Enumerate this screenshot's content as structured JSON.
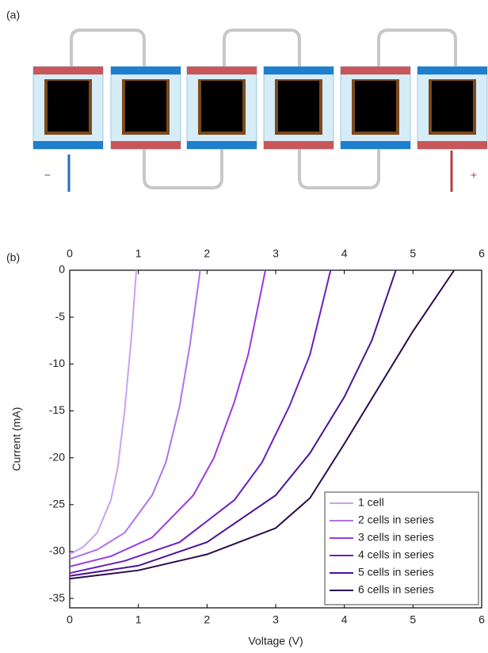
{
  "panel_a": {
    "label": "(a)",
    "minus": "−",
    "plus": "+"
  },
  "chart_data": {
    "type": "line",
    "panel_label": "(b)",
    "x_label": "Voltage (V)",
    "y_label": "Current (mA)",
    "xlim": [
      0,
      6
    ],
    "xticks": [
      0,
      1,
      2,
      3,
      4,
      5,
      6
    ],
    "ylim": [
      -36,
      0
    ],
    "yticks": [
      0,
      -5,
      -10,
      -15,
      -20,
      -25,
      -30,
      -35
    ],
    "grid": false,
    "legend": "lower right",
    "series": [
      {
        "name": "1 cell",
        "color": "#c9a2f2",
        "x": [
          0,
          0.2,
          0.4,
          0.6,
          0.7,
          0.8,
          0.9,
          0.97
        ],
        "values": [
          -30.3,
          -29.5,
          -28,
          -24.5,
          -21,
          -15,
          -7,
          0
        ]
      },
      {
        "name": "2 cells in series",
        "color": "#b072ea",
        "x": [
          0,
          0.4,
          0.8,
          1.2,
          1.4,
          1.6,
          1.75,
          1.9
        ],
        "values": [
          -30.8,
          -29.8,
          -28,
          -24,
          -20.5,
          -14.5,
          -8,
          0
        ]
      },
      {
        "name": "3 cells in series",
        "color": "#9a3ae6",
        "x": [
          0,
          0.6,
          1.2,
          1.8,
          2.1,
          2.4,
          2.6,
          2.85
        ],
        "values": [
          -31.6,
          -30.5,
          -28.5,
          -24,
          -20,
          -14,
          -9,
          0
        ]
      },
      {
        "name": "4 cells in series",
        "color": "#6c1fc0",
        "x": [
          0,
          0.8,
          1.6,
          2.4,
          2.8,
          3.2,
          3.5,
          3.8
        ],
        "values": [
          -32.3,
          -31,
          -29,
          -24.5,
          -20.5,
          -14.5,
          -9,
          0
        ]
      },
      {
        "name": "5 cells in series",
        "color": "#4c1294",
        "x": [
          0,
          1,
          2,
          3,
          3.5,
          4,
          4.4,
          4.75
        ],
        "values": [
          -32.6,
          -31.5,
          -29,
          -24,
          -19.5,
          -13.5,
          -7.5,
          0
        ]
      },
      {
        "name": "6 cells in series",
        "color": "#2a0b4e",
        "x": [
          0,
          1,
          2,
          3,
          3.5,
          4,
          4.5,
          5,
          5.6
        ],
        "values": [
          -32.9,
          -32,
          -30.3,
          -27.5,
          -24.3,
          -18.5,
          -12.5,
          -6.5,
          0
        ]
      }
    ]
  }
}
